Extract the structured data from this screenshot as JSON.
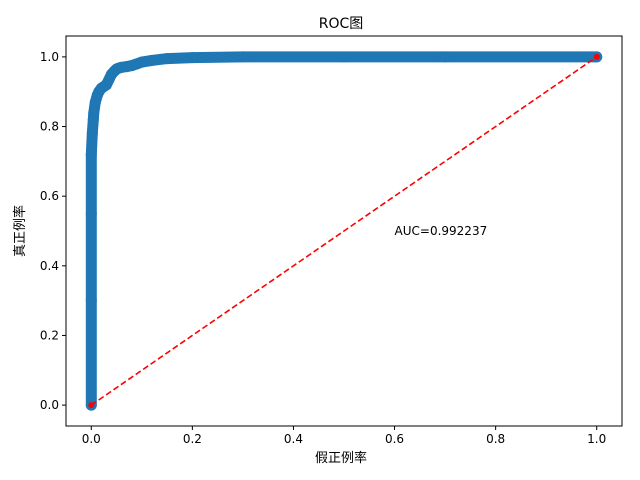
{
  "chart_data": {
    "type": "line",
    "title": "ROC图",
    "xlabel": "假正例率",
    "ylabel": "真正例率",
    "xlim": [
      -0.05,
      1.05
    ],
    "ylim": [
      -0.06,
      1.06
    ],
    "grid": false,
    "x_ticks": [
      "0.0",
      "0.2",
      "0.4",
      "0.6",
      "0.8",
      "1.0"
    ],
    "y_ticks": [
      "0.0",
      "0.2",
      "0.4",
      "0.6",
      "0.8",
      "1.0"
    ],
    "annotation": "AUC=0.992237",
    "annotation_at": [
      0.6,
      0.5
    ],
    "colors": {
      "roc": "#1f77b4",
      "diagonal": "#ff0000"
    },
    "series": [
      {
        "values_x": [
          0.0,
          0.0,
          0.0,
          0.0,
          0.002,
          0.004,
          0.005,
          0.008,
          0.012,
          0.015,
          0.02,
          0.03,
          0.035,
          0.04,
          0.045,
          0.05,
          0.055,
          0.06,
          0.07,
          0.08,
          0.09,
          0.1,
          0.12,
          0.15,
          0.2,
          0.3,
          0.5,
          0.7,
          1.0
        ],
        "values_y": [
          0.0,
          0.3,
          0.55,
          0.72,
          0.78,
          0.82,
          0.84,
          0.87,
          0.89,
          0.9,
          0.91,
          0.92,
          0.935,
          0.95,
          0.958,
          0.965,
          0.968,
          0.97,
          0.972,
          0.975,
          0.98,
          0.985,
          0.99,
          0.995,
          0.998,
          1.0,
          1.0,
          1.0,
          1.0
        ]
      },
      {
        "values_x": [
          0.0,
          1.0
        ],
        "values_y": [
          0.0,
          1.0
        ]
      }
    ]
  }
}
